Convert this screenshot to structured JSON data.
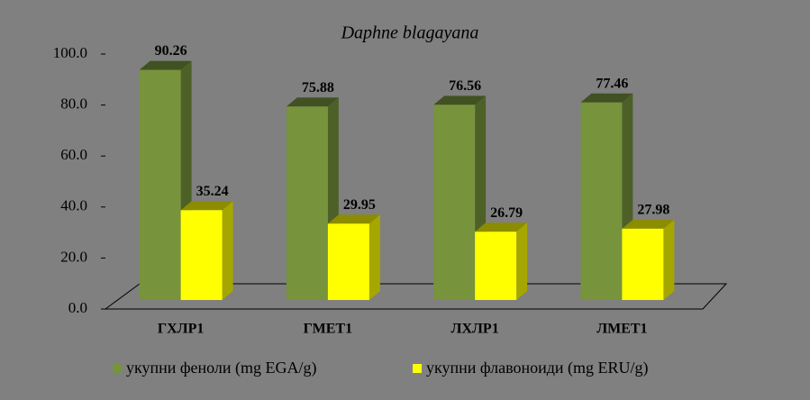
{
  "chart_data": {
    "type": "bar3d",
    "title": "Daphne blagayana",
    "categories": [
      "ГХЛР1",
      "ГМЕТ1",
      "ЛХЛР1",
      "ЛМЕТ1"
    ],
    "series": [
      {
        "name": "укупни феноли (mg EGA/g)",
        "color": "#77933c",
        "values": [
          90.26,
          75.88,
          76.56,
          77.46
        ]
      },
      {
        "name": "укупни флавоноиди (mg ERU/g)",
        "color": "#ffff00",
        "values": [
          35.24,
          29.95,
          26.79,
          27.98
        ]
      }
    ],
    "ylim": [
      0,
      100
    ],
    "yticks": [
      {
        "value": 0,
        "label": "0.0"
      },
      {
        "value": 20,
        "label": "20.0"
      },
      {
        "value": 40,
        "label": "40.0"
      },
      {
        "value": 60,
        "label": "60.0"
      },
      {
        "value": 80,
        "label": "80.0"
      },
      {
        "value": 100,
        "label": "100.0"
      }
    ],
    "grid": false
  }
}
